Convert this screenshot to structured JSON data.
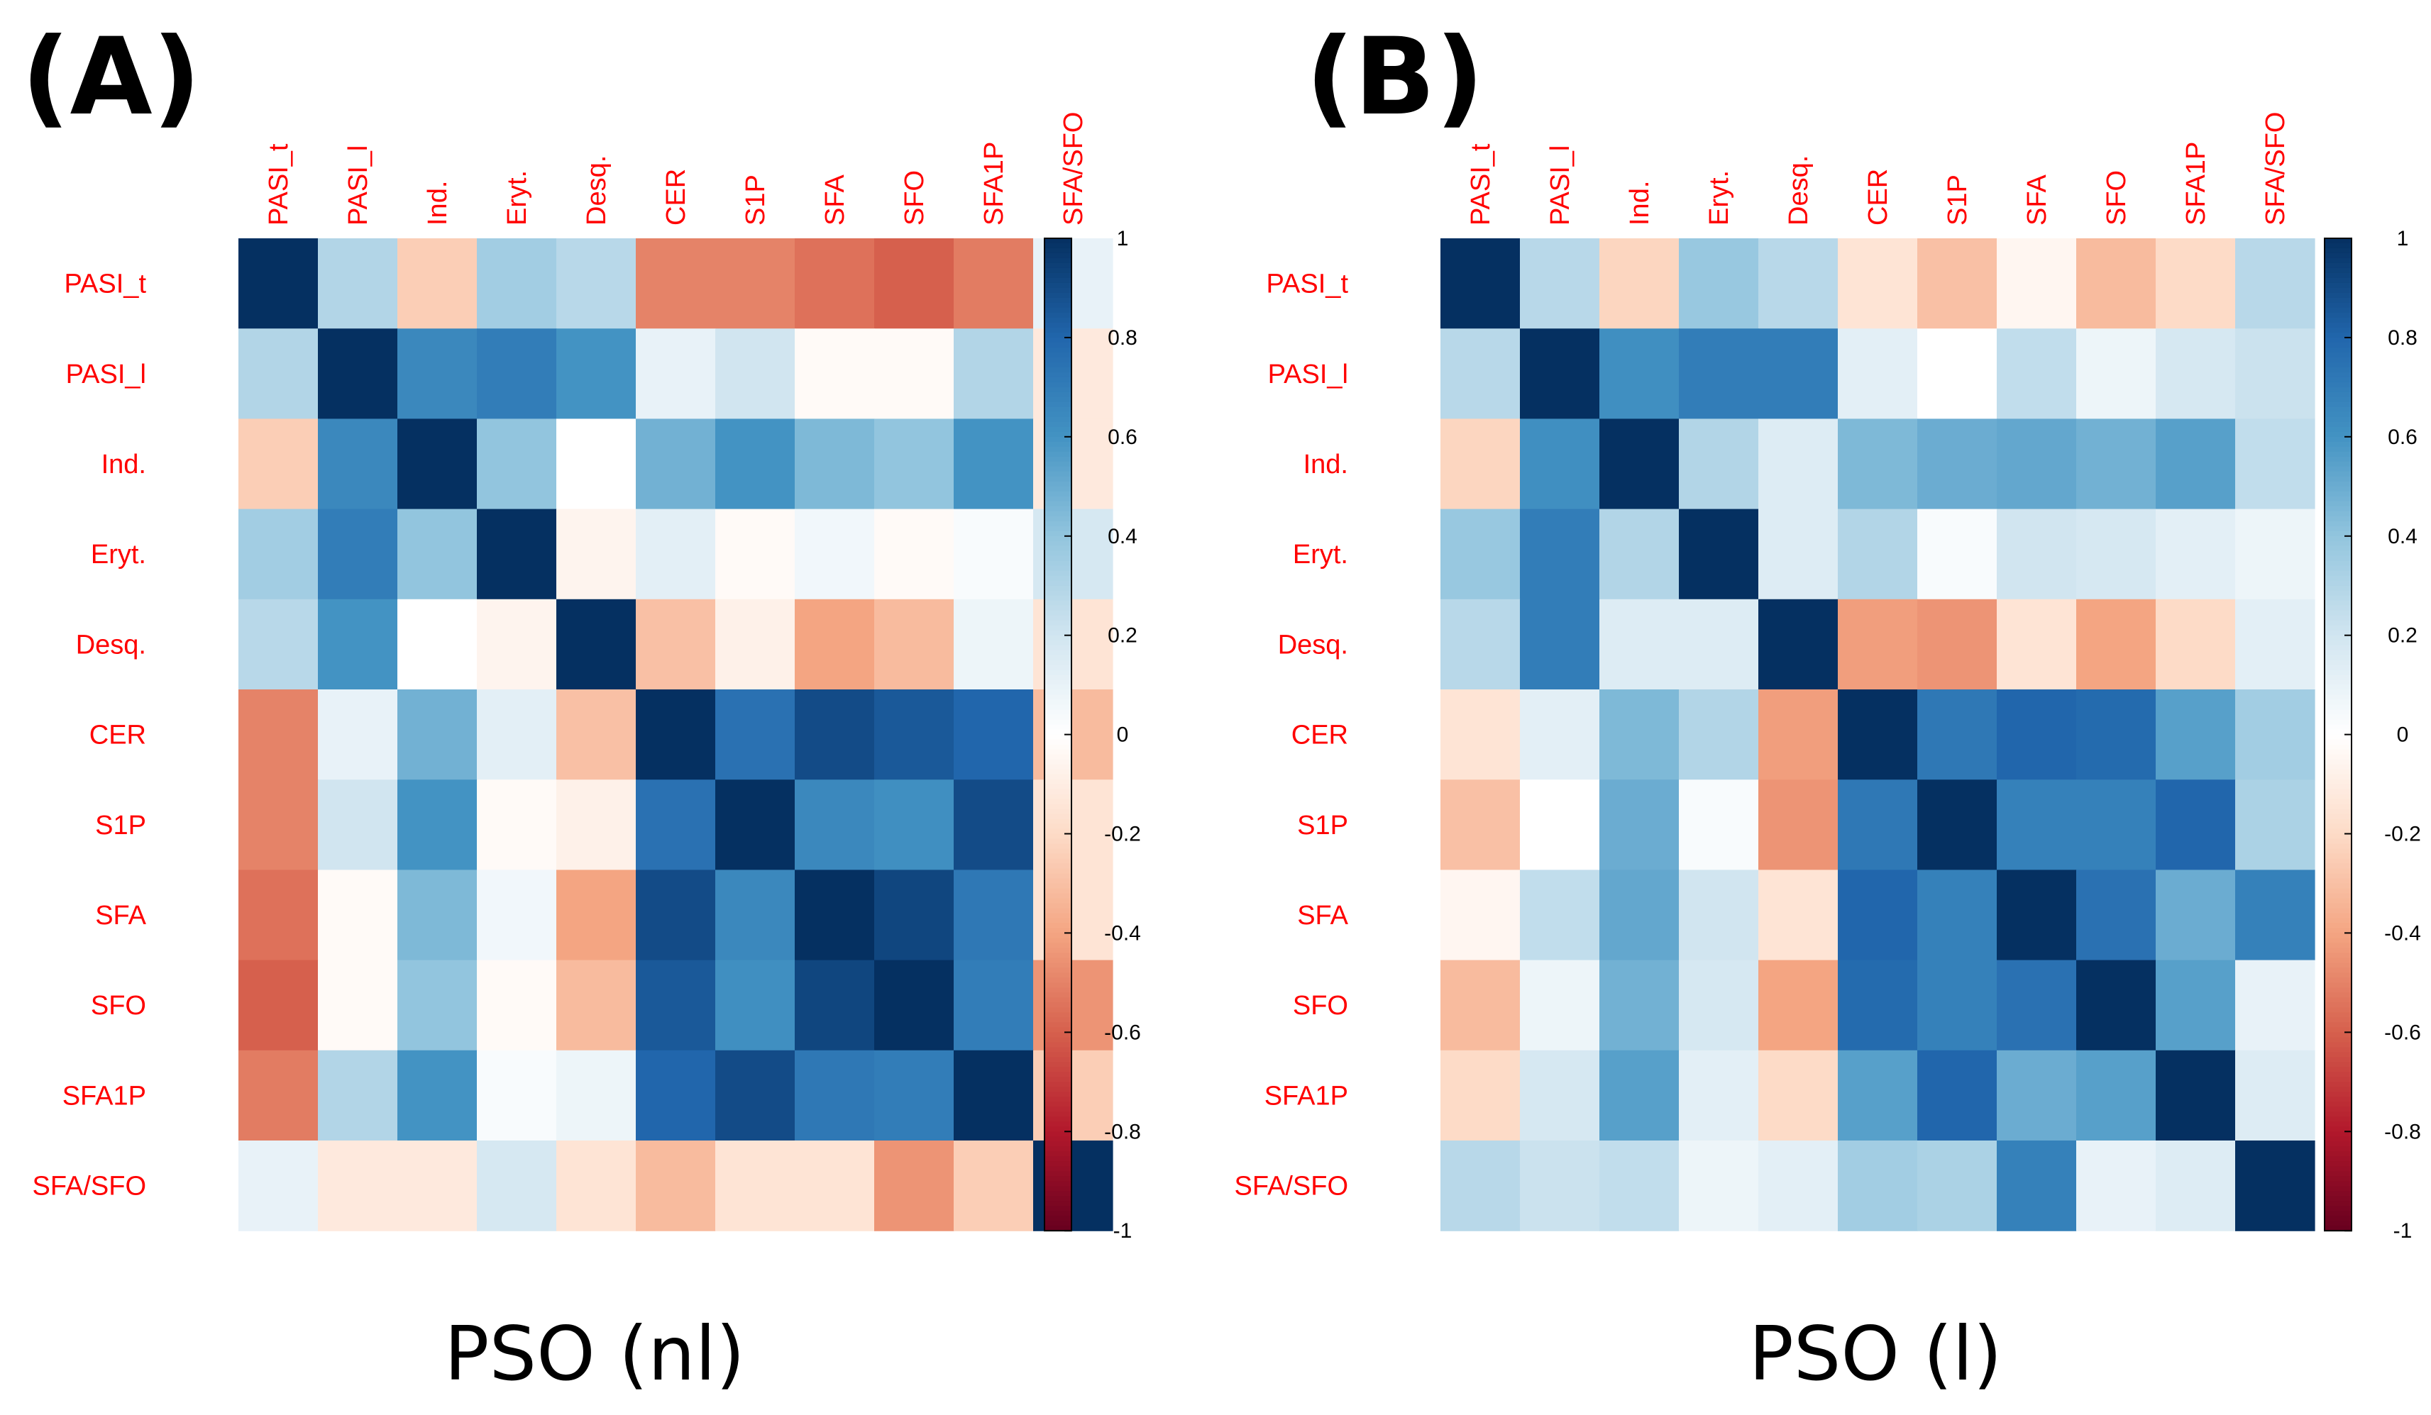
{
  "colors": {
    "label": "#ff0000",
    "negative_end": "#67001f",
    "neutral": "#ffffff",
    "positive_end": "#053061"
  },
  "colorbar_ticks": [
    "1",
    "0.8",
    "0.6",
    "0.4",
    "0.2",
    "0",
    "-0.2",
    "-0.4",
    "-0.6",
    "-0.8",
    "-1"
  ],
  "chart_data": [
    {
      "type": "heatmap",
      "panel_label": "(A)",
      "title": "PSO (nl)",
      "variables": [
        "PASI_t",
        "PASI_l",
        "Ind.",
        "Eryt.",
        "Desq.",
        "CER",
        "S1P",
        "SFA",
        "SFO",
        "SFA1P",
        "SFA/SFO"
      ],
      "value_range": [
        -1,
        1
      ],
      "matrix": [
        [
          1.0,
          0.3,
          -0.25,
          0.35,
          0.28,
          -0.5,
          -0.5,
          -0.55,
          -0.6,
          -0.52,
          0.1
        ],
        [
          0.3,
          1.0,
          0.65,
          0.7,
          0.6,
          0.1,
          0.2,
          -0.03,
          -0.03,
          0.3,
          -0.12
        ],
        [
          -0.25,
          0.65,
          1.0,
          0.4,
          0.0,
          0.48,
          0.6,
          0.45,
          0.4,
          0.6,
          -0.12
        ],
        [
          0.35,
          0.7,
          0.4,
          1.0,
          -0.06,
          0.12,
          -0.03,
          0.06,
          -0.03,
          0.03,
          0.18
        ],
        [
          0.28,
          0.6,
          0.0,
          -0.06,
          1.0,
          -0.3,
          -0.08,
          -0.4,
          -0.32,
          0.08,
          -0.15
        ],
        [
          -0.5,
          0.1,
          0.48,
          0.12,
          -0.3,
          1.0,
          0.75,
          0.9,
          0.85,
          0.8,
          -0.32
        ],
        [
          -0.5,
          0.2,
          0.6,
          -0.03,
          -0.08,
          0.75,
          1.0,
          0.65,
          0.62,
          0.9,
          -0.15
        ],
        [
          -0.55,
          -0.03,
          0.45,
          0.06,
          -0.4,
          0.9,
          0.65,
          1.0,
          0.92,
          0.72,
          -0.15
        ],
        [
          -0.6,
          -0.03,
          0.4,
          -0.03,
          -0.32,
          0.85,
          0.62,
          0.92,
          1.0,
          0.7,
          -0.45
        ],
        [
          -0.52,
          0.3,
          0.6,
          0.03,
          0.08,
          0.8,
          0.9,
          0.72,
          0.7,
          1.0,
          -0.25
        ],
        [
          0.1,
          -0.12,
          -0.12,
          0.18,
          -0.15,
          -0.32,
          -0.15,
          -0.15,
          -0.45,
          -0.25,
          1.0
        ]
      ]
    },
    {
      "type": "heatmap",
      "panel_label": "(B)",
      "title": "PSO (l)",
      "variables": [
        "PASI_t",
        "PASI_l",
        "Ind.",
        "Eryt.",
        "Desq.",
        "CER",
        "S1P",
        "SFA",
        "SFO",
        "SFA1P",
        "SFA/SFO"
      ],
      "value_range": [
        -1,
        1
      ],
      "matrix": [
        [
          1.0,
          0.28,
          -0.22,
          0.38,
          0.28,
          -0.15,
          -0.3,
          -0.05,
          -0.32,
          -0.2,
          0.28
        ],
        [
          0.28,
          1.0,
          0.62,
          0.7,
          0.7,
          0.12,
          0.0,
          0.25,
          0.08,
          0.18,
          0.22
        ],
        [
          -0.22,
          0.62,
          1.0,
          0.3,
          0.15,
          0.45,
          0.5,
          0.52,
          0.48,
          0.55,
          0.25
        ],
        [
          0.38,
          0.7,
          0.3,
          1.0,
          0.15,
          0.3,
          0.03,
          0.2,
          0.18,
          0.12,
          0.08
        ],
        [
          0.28,
          0.7,
          0.15,
          0.15,
          1.0,
          -0.42,
          -0.45,
          -0.15,
          -0.4,
          -0.2,
          0.12
        ],
        [
          -0.15,
          0.12,
          0.45,
          0.3,
          -0.42,
          1.0,
          0.72,
          0.8,
          0.78,
          0.55,
          0.35
        ],
        [
          -0.3,
          0.0,
          0.5,
          0.03,
          -0.45,
          0.72,
          1.0,
          0.68,
          0.68,
          0.8,
          0.32
        ],
        [
          -0.05,
          0.25,
          0.52,
          0.2,
          -0.15,
          0.8,
          0.68,
          1.0,
          0.75,
          0.5,
          0.68
        ],
        [
          -0.32,
          0.08,
          0.48,
          0.18,
          -0.4,
          0.78,
          0.68,
          0.75,
          1.0,
          0.55,
          0.1
        ],
        [
          -0.2,
          0.18,
          0.55,
          0.12,
          -0.2,
          0.55,
          0.8,
          0.5,
          0.55,
          1.0,
          0.15
        ],
        [
          0.28,
          0.22,
          0.25,
          0.08,
          0.12,
          0.35,
          0.32,
          0.68,
          0.1,
          0.15,
          1.0
        ]
      ]
    }
  ]
}
